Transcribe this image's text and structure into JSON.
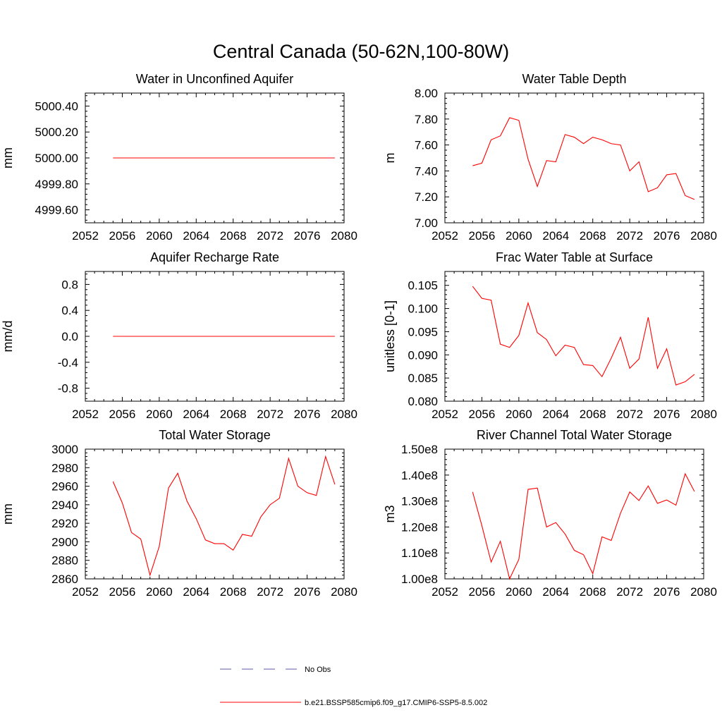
{
  "figure_title": "Central Canada (50-62N,100-80W)",
  "legend": {
    "obs_label": "No Obs",
    "obs_color": "#5a5aa8",
    "model_label": "b.e21.BSSP585cmip6.f09_g17.CMIP6-SSP5-8.5.002",
    "model_color": "#ff0000"
  },
  "chart_data": [
    {
      "type": "line",
      "title": "Water in Unconfined Aquifer",
      "ylabel": "mm",
      "xlim": [
        2052,
        2080
      ],
      "xticks": [
        "2052",
        "2056",
        "2060",
        "2064",
        "2068",
        "2072",
        "2076",
        "2080"
      ],
      "ylim": [
        4999.5,
        5000.5
      ],
      "yticks": [
        "4999.60",
        "4999.80",
        "5000.00",
        "5000.20",
        "5000.40"
      ],
      "series": [
        {
          "color": "#ff0000",
          "x": [
            2055,
            2056,
            2057,
            2058,
            2059,
            2060,
            2061,
            2062,
            2063,
            2064,
            2065,
            2066,
            2067,
            2068,
            2069,
            2070,
            2071,
            2072,
            2073,
            2074,
            2075,
            2076,
            2077,
            2078,
            2079
          ],
          "y": [
            5000,
            5000,
            5000,
            5000,
            5000,
            5000,
            5000,
            5000,
            5000,
            5000,
            5000,
            5000,
            5000,
            5000,
            5000,
            5000,
            5000,
            5000,
            5000,
            5000,
            5000,
            5000,
            5000,
            5000,
            5000
          ]
        }
      ]
    },
    {
      "type": "line",
      "title": "Water Table Depth",
      "ylabel": "m",
      "xlim": [
        2052,
        2080
      ],
      "xticks": [
        "2052",
        "2056",
        "2060",
        "2064",
        "2068",
        "2072",
        "2076",
        "2080"
      ],
      "ylim": [
        7.0,
        8.0
      ],
      "yticks": [
        "7.00",
        "7.20",
        "7.40",
        "7.60",
        "7.80",
        "8.00"
      ],
      "series": [
        {
          "color": "#ff0000",
          "x": [
            2055,
            2056,
            2057,
            2058,
            2059,
            2060,
            2061,
            2062,
            2063,
            2064,
            2065,
            2066,
            2067,
            2068,
            2069,
            2070,
            2071,
            2072,
            2073,
            2074,
            2075,
            2076,
            2077,
            2078,
            2079
          ],
          "y": [
            7.44,
            7.46,
            7.64,
            7.67,
            7.81,
            7.79,
            7.49,
            7.28,
            7.48,
            7.47,
            7.68,
            7.66,
            7.61,
            7.66,
            7.64,
            7.61,
            7.6,
            7.4,
            7.47,
            7.24,
            7.27,
            7.37,
            7.38,
            7.21,
            7.18
          ]
        }
      ]
    },
    {
      "type": "line",
      "title": "Aquifer Recharge Rate",
      "ylabel": "mm/d",
      "xlim": [
        2052,
        2080
      ],
      "xticks": [
        "2052",
        "2056",
        "2060",
        "2064",
        "2068",
        "2072",
        "2076",
        "2080"
      ],
      "ylim": [
        -1.0,
        1.0
      ],
      "yticks": [
        "-0.8",
        "-0.4",
        "0.0",
        "0.4",
        "0.8"
      ],
      "series": [
        {
          "color": "#ff0000",
          "x": [
            2055,
            2056,
            2057,
            2058,
            2059,
            2060,
            2061,
            2062,
            2063,
            2064,
            2065,
            2066,
            2067,
            2068,
            2069,
            2070,
            2071,
            2072,
            2073,
            2074,
            2075,
            2076,
            2077,
            2078,
            2079
          ],
          "y": [
            0,
            0,
            0,
            0,
            0,
            0,
            0,
            0,
            0,
            0,
            0,
            0,
            0,
            0,
            0,
            0,
            0,
            0,
            0,
            0,
            0,
            0,
            0,
            0,
            0
          ]
        }
      ]
    },
    {
      "type": "line",
      "title": "Frac Water Table at Surface",
      "ylabel": "unitless [0-1]",
      "xlim": [
        2052,
        2080
      ],
      "xticks": [
        "2052",
        "2056",
        "2060",
        "2064",
        "2068",
        "2072",
        "2076",
        "2080"
      ],
      "ylim": [
        0.08,
        0.108
      ],
      "yticks": [
        "0.080",
        "0.085",
        "0.090",
        "0.095",
        "0.100",
        "0.105"
      ],
      "series": [
        {
          "color": "#ff0000",
          "x": [
            2055,
            2056,
            2057,
            2058,
            2059,
            2060,
            2061,
            2062,
            2063,
            2064,
            2065,
            2066,
            2067,
            2068,
            2069,
            2070,
            2071,
            2072,
            2073,
            2074,
            2075,
            2076,
            2077,
            2078,
            2079
          ],
          "y": [
            0.1048,
            0.1022,
            0.1018,
            0.0923,
            0.0916,
            0.0942,
            0.1012,
            0.0948,
            0.0933,
            0.0898,
            0.0921,
            0.0916,
            0.0879,
            0.0877,
            0.0853,
            0.0893,
            0.0938,
            0.0871,
            0.0891,
            0.0981,
            0.0871,
            0.0913,
            0.0835,
            0.0842,
            0.0858
          ]
        }
      ]
    },
    {
      "type": "line",
      "title": "Total Water Storage",
      "ylabel": "mm",
      "xlim": [
        2052,
        2080
      ],
      "xticks": [
        "2052",
        "2056",
        "2060",
        "2064",
        "2068",
        "2072",
        "2076",
        "2080"
      ],
      "ylim": [
        2860,
        3000
      ],
      "yticks": [
        "2860",
        "2880",
        "2900",
        "2920",
        "2940",
        "2960",
        "2980",
        "3000"
      ],
      "series": [
        {
          "color": "#ff0000",
          "x": [
            2055,
            2056,
            2057,
            2058,
            2059,
            2060,
            2061,
            2062,
            2063,
            2064,
            2065,
            2066,
            2067,
            2068,
            2069,
            2070,
            2071,
            2072,
            2073,
            2074,
            2075,
            2076,
            2077,
            2078,
            2079
          ],
          "y": [
            2965,
            2942,
            2910,
            2903,
            2864,
            2895,
            2958,
            2974,
            2944,
            2925,
            2902,
            2898,
            2898,
            2891,
            2908,
            2906,
            2927,
            2940,
            2947,
            2990,
            2960,
            2953,
            2950,
            2992,
            2962
          ]
        }
      ]
    },
    {
      "type": "line",
      "title": "River Channel Total Water Storage",
      "ylabel": "m3",
      "xlim": [
        2052,
        2080
      ],
      "xticks": [
        "2052",
        "2056",
        "2060",
        "2064",
        "2068",
        "2072",
        "2076",
        "2080"
      ],
      "ylim": [
        100000000,
        150000000
      ],
      "yticks": [
        "1.00e8",
        "1.10e8",
        "1.20e8",
        "1.30e8",
        "1.40e8",
        "1.50e8"
      ],
      "series": [
        {
          "color": "#ff0000",
          "x": [
            2055,
            2056,
            2057,
            2058,
            2059,
            2060,
            2061,
            2062,
            2063,
            2064,
            2065,
            2066,
            2067,
            2068,
            2069,
            2070,
            2071,
            2072,
            2073,
            2074,
            2075,
            2076,
            2077,
            2078,
            2079
          ],
          "y": [
            133500000,
            120500000,
            106500000,
            114500000,
            100000000,
            107500000,
            134500000,
            135000000,
            120000000,
            121700000,
            117300000,
            111000000,
            109300000,
            102000000,
            116200000,
            114800000,
            125300000,
            133500000,
            130200000,
            135800000,
            129100000,
            130400000,
            128400000,
            140500000,
            133700000
          ]
        }
      ]
    }
  ]
}
